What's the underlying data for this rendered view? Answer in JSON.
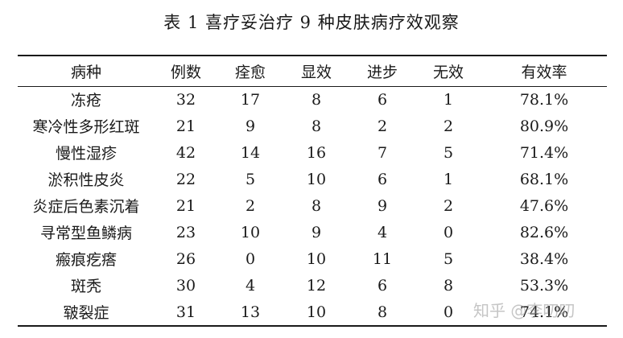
{
  "caption": "表 1  喜疗妥治疗 9 种皮肤病疗效观察",
  "table": {
    "headers": [
      "病种",
      "例数",
      "痊愈",
      "显效",
      "进步",
      "无效",
      "有效率"
    ],
    "rows": [
      [
        "冻疮",
        "32",
        "17",
        "8",
        "6",
        "1",
        "78.1%"
      ],
      [
        "寒冷性多形红斑",
        "21",
        "9",
        "8",
        "2",
        "2",
        "80.9%"
      ],
      [
        "慢性湿疹",
        "42",
        "14",
        "16",
        "7",
        "5",
        "71.4%"
      ],
      [
        "淤积性皮炎",
        "22",
        "5",
        "10",
        "6",
        "1",
        "68.1%"
      ],
      [
        "炎症后色素沉着",
        "21",
        "2",
        "8",
        "9",
        "2",
        "47.6%"
      ],
      [
        "寻常型鱼鳞病",
        "23",
        "10",
        "9",
        "4",
        "0",
        "82.6%"
      ],
      [
        "瘢痕疙瘩",
        "26",
        "0",
        "10",
        "11",
        "5",
        "38.4%"
      ],
      [
        "斑秃",
        "30",
        "4",
        "12",
        "6",
        "8",
        "53.3%"
      ],
      [
        "皲裂症",
        "31",
        "13",
        "10",
        "8",
        "0",
        "74.1%"
      ]
    ]
  },
  "watermark": "知乎 @李叨叨"
}
